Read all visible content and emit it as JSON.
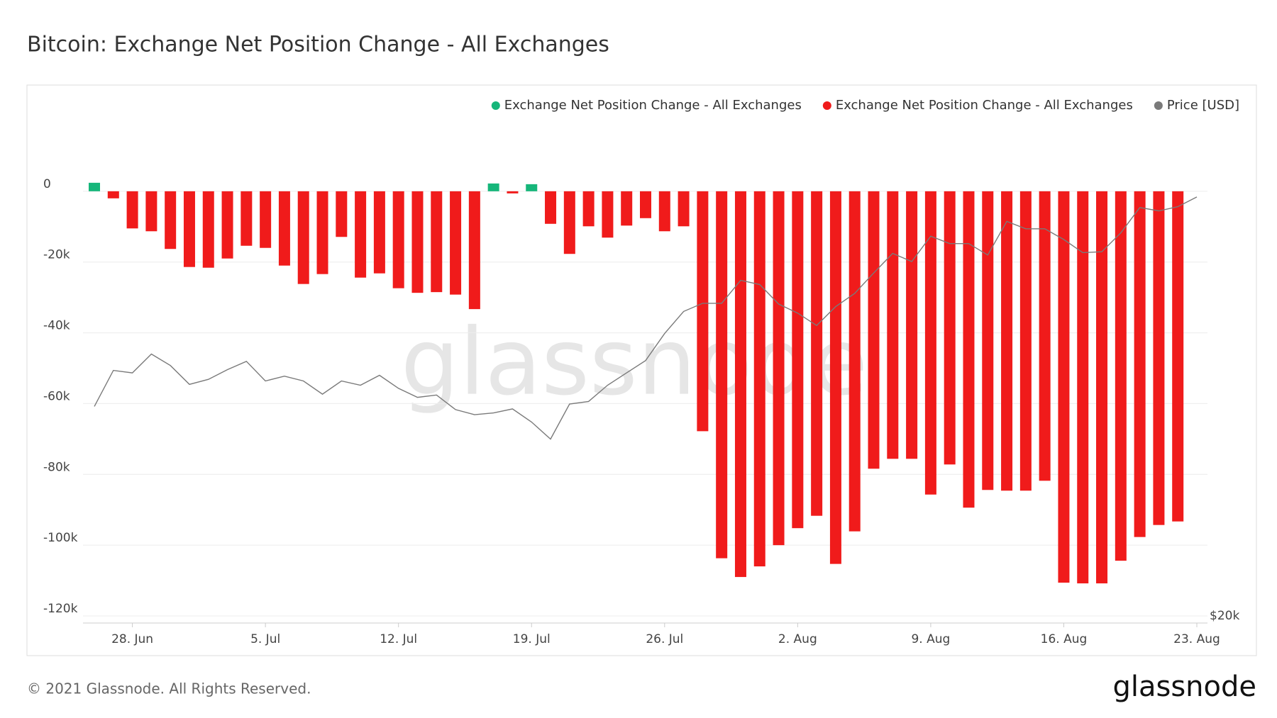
{
  "chart_data": {
    "type": "bar",
    "title": "Bitcoin: Exchange Net Position Change - All Exchanges",
    "watermark": "glassnode",
    "legend": "top-right",
    "grid": true,
    "categories": [
      null,
      null,
      "28. Jun",
      null,
      null,
      null,
      null,
      null,
      null,
      "5. Jul",
      null,
      null,
      null,
      null,
      null,
      null,
      "12. Jul",
      null,
      null,
      null,
      null,
      null,
      null,
      "19. Jul",
      null,
      null,
      null,
      null,
      null,
      null,
      "26. Jul",
      null,
      null,
      null,
      null,
      null,
      null,
      "2. Aug",
      null,
      null,
      null,
      null,
      null,
      null,
      "9. Aug",
      null,
      null,
      null,
      null,
      null,
      null,
      "16. Aug",
      null,
      null,
      null,
      null,
      null,
      null,
      "23. Aug"
    ],
    "ylim": [
      -120000,
      21000
    ],
    "yticks": [
      0,
      {
        "value": -20000,
        "label": "-20k"
      },
      {
        "value": -40000,
        "label": "-40k"
      },
      {
        "value": -60000,
        "label": "-60k"
      },
      {
        "value": -80000,
        "label": "-80k"
      },
      {
        "value": -100000,
        "label": "-100k"
      },
      {
        "value": -120000,
        "label": "-120k"
      }
    ],
    "y2lim": [
      20000,
      60000
    ],
    "y2log": true,
    "y2ticks": [
      {
        "value": 20000,
        "label": "$20k"
      }
    ],
    "series": [
      {
        "name": "Exchange Net Position Change - All Exchanges",
        "color": "#16b67a",
        "values": [
          2400,
          null,
          null,
          null,
          null,
          null,
          null,
          null,
          null,
          null,
          null,
          null,
          null,
          null,
          null,
          null,
          null,
          null,
          null,
          null,
          null,
          2200,
          null,
          2000,
          null,
          null,
          null,
          null,
          null,
          null,
          null,
          null,
          null,
          null,
          null,
          null,
          null,
          null,
          null,
          null,
          null,
          null,
          null,
          null,
          null,
          null,
          null,
          null,
          null,
          null,
          null,
          null,
          null,
          null,
          null,
          null,
          null,
          null,
          null
        ]
      },
      {
        "name": "Exchange Net Position Change - All Exchanges",
        "color": "#f01b1b",
        "values": [
          null,
          -2000,
          -10500,
          -11300,
          -16300,
          -21400,
          -21600,
          -19000,
          -15400,
          -16000,
          -21000,
          -26200,
          -23400,
          -12900,
          -24400,
          -23200,
          -27400,
          -28700,
          -28500,
          -29200,
          -33300,
          null,
          -600,
          null,
          -9200,
          -17700,
          -9900,
          -13100,
          -9700,
          -7600,
          -11300,
          -9900,
          -67800,
          -103700,
          -109000,
          -106000,
          -100000,
          -95200,
          -91700,
          -105300,
          -96100,
          -78400,
          -75600,
          -75600,
          -85700,
          -77200,
          -89400,
          -84400,
          -84600,
          -84600,
          -81800,
          -110600,
          -110800,
          -110800,
          -104400,
          -97700,
          -94300,
          -93300,
          null
        ]
      },
      {
        "name": "Price [USD]",
        "color": "#7a7a7a",
        "type": "line",
        "axis": "y2",
        "values": [
          31720,
          34340,
          34150,
          35600,
          34710,
          33300,
          33670,
          34400,
          35030,
          33550,
          33910,
          33550,
          32590,
          33550,
          33240,
          33970,
          33010,
          32360,
          32530,
          31500,
          31150,
          31270,
          31550,
          30650,
          29520,
          31890,
          32070,
          33240,
          34150,
          35090,
          37240,
          39100,
          39810,
          39810,
          41870,
          41490,
          39740,
          38960,
          37910,
          39520,
          40680,
          42550,
          44430,
          43640,
          46150,
          45400,
          45400,
          44270,
          47670,
          46900,
          46900,
          45810,
          44510,
          44590,
          46480,
          49150,
          48790,
          49240,
          50310
        ]
      }
    ]
  },
  "footer": {
    "copyright": "© 2021 Glassnode. All Rights Reserved.",
    "logo": "glassnode"
  }
}
